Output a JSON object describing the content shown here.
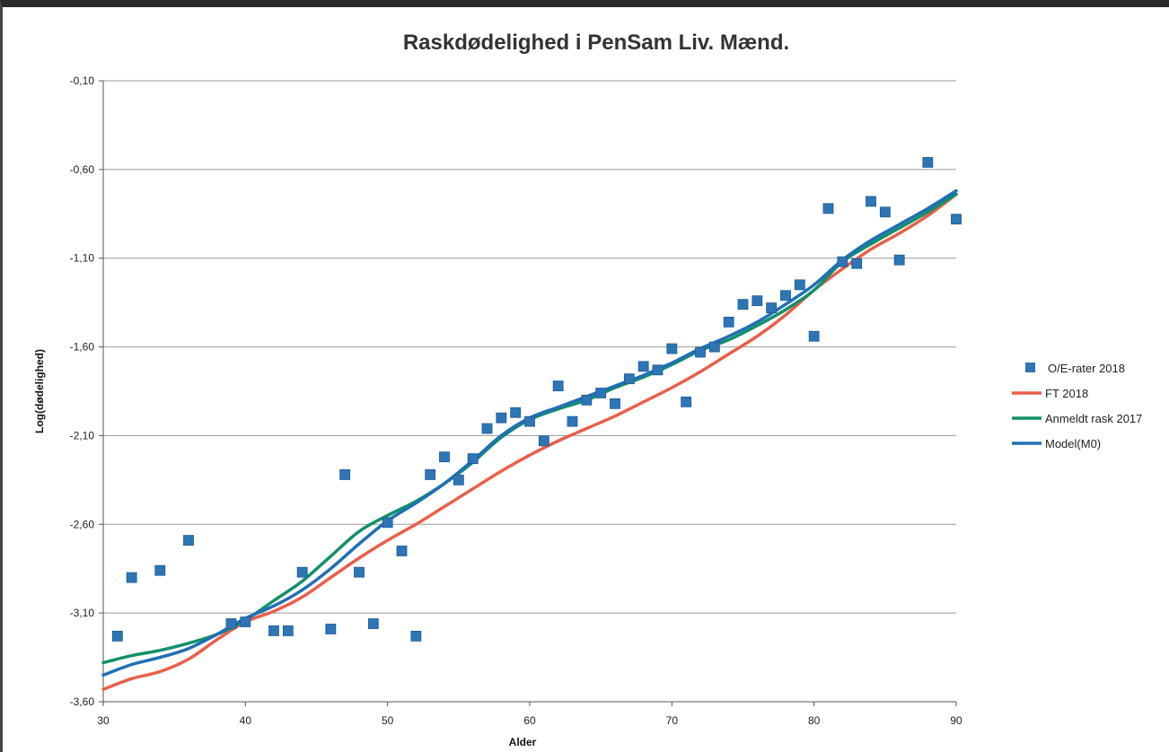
{
  "chart_data": {
    "type": "scatter",
    "title": "Raskdødelighed i PenSam Liv. Mænd.",
    "xlabel": "Alder",
    "ylabel": "Log(dødelighed)",
    "xlim": [
      30,
      90
    ],
    "ylim": [
      -3.6,
      -0.1
    ],
    "xticks": [
      30,
      40,
      50,
      60,
      70,
      80,
      90
    ],
    "xtick_labels": [
      "30",
      "40",
      "50",
      "60",
      "70",
      "80",
      "90"
    ],
    "yticks": [
      -0.1,
      -0.6,
      -1.1,
      -1.6,
      -2.1,
      -2.6,
      -3.1,
      -3.6
    ],
    "ytick_labels": [
      "-0,10",
      "-0,60",
      "-1,10",
      "-1,60",
      "-2,10",
      "-2,60",
      "-3,10",
      "-3,60"
    ],
    "grid": true,
    "legend_position": "right",
    "series": [
      {
        "name": "O/E-rater 2018",
        "kind": "scatter",
        "color": "#2e75b6",
        "points": [
          [
            31,
            -3.23
          ],
          [
            32,
            -2.9
          ],
          [
            34,
            -2.86
          ],
          [
            36,
            -2.69
          ],
          [
            39,
            -3.16
          ],
          [
            40,
            -3.15
          ],
          [
            42,
            -3.2
          ],
          [
            43,
            -3.2
          ],
          [
            44,
            -2.87
          ],
          [
            46,
            -3.19
          ],
          [
            47,
            -2.32
          ],
          [
            48,
            -2.87
          ],
          [
            49,
            -3.16
          ],
          [
            50,
            -2.59
          ],
          [
            51,
            -2.75
          ],
          [
            52,
            -3.23
          ],
          [
            53,
            -2.32
          ],
          [
            54,
            -2.22
          ],
          [
            55,
            -2.35
          ],
          [
            56,
            -2.23
          ],
          [
            57,
            -2.06
          ],
          [
            58,
            -2.0
          ],
          [
            59,
            -1.97
          ],
          [
            60,
            -2.02
          ],
          [
            61,
            -2.13
          ],
          [
            62,
            -1.82
          ],
          [
            63,
            -2.02
          ],
          [
            64,
            -1.9
          ],
          [
            65,
            -1.86
          ],
          [
            66,
            -1.92
          ],
          [
            67,
            -1.78
          ],
          [
            68,
            -1.71
          ],
          [
            69,
            -1.73
          ],
          [
            70,
            -1.61
          ],
          [
            71,
            -1.91
          ],
          [
            72,
            -1.63
          ],
          [
            73,
            -1.6
          ],
          [
            74,
            -1.46
          ],
          [
            75,
            -1.36
          ],
          [
            76,
            -1.34
          ],
          [
            77,
            -1.38
          ],
          [
            78,
            -1.31
          ],
          [
            79,
            -1.25
          ],
          [
            80,
            -1.54
          ],
          [
            81,
            -0.82
          ],
          [
            82,
            -1.12
          ],
          [
            83,
            -1.13
          ],
          [
            84,
            -0.78
          ],
          [
            85,
            -0.84
          ],
          [
            86,
            -1.11
          ],
          [
            88,
            -0.56
          ],
          [
            90,
            -0.88
          ]
        ]
      },
      {
        "name": "FT 2018",
        "kind": "line",
        "color": "#e8604a",
        "points": [
          [
            30,
            -3.53
          ],
          [
            32,
            -3.47
          ],
          [
            34,
            -3.43
          ],
          [
            36,
            -3.36
          ],
          [
            38,
            -3.25
          ],
          [
            40,
            -3.15
          ],
          [
            42,
            -3.09
          ],
          [
            44,
            -3.01
          ],
          [
            46,
            -2.9
          ],
          [
            48,
            -2.79
          ],
          [
            50,
            -2.69
          ],
          [
            52,
            -2.6
          ],
          [
            54,
            -2.5
          ],
          [
            56,
            -2.4
          ],
          [
            58,
            -2.3
          ],
          [
            60,
            -2.21
          ],
          [
            62,
            -2.13
          ],
          [
            64,
            -2.06
          ],
          [
            66,
            -1.99
          ],
          [
            68,
            -1.91
          ],
          [
            70,
            -1.83
          ],
          [
            72,
            -1.74
          ],
          [
            74,
            -1.64
          ],
          [
            76,
            -1.54
          ],
          [
            78,
            -1.42
          ],
          [
            80,
            -1.28
          ],
          [
            82,
            -1.16
          ],
          [
            84,
            -1.05
          ],
          [
            86,
            -0.96
          ],
          [
            88,
            -0.86
          ],
          [
            90,
            -0.74
          ]
        ]
      },
      {
        "name": "Anmeldt rask 2017",
        "kind": "line",
        "color": "#12906a",
        "points": [
          [
            30,
            -3.38
          ],
          [
            32,
            -3.34
          ],
          [
            34,
            -3.31
          ],
          [
            36,
            -3.27
          ],
          [
            38,
            -3.22
          ],
          [
            40,
            -3.14
          ],
          [
            42,
            -3.03
          ],
          [
            44,
            -2.92
          ],
          [
            46,
            -2.78
          ],
          [
            48,
            -2.64
          ],
          [
            50,
            -2.55
          ],
          [
            52,
            -2.47
          ],
          [
            54,
            -2.37
          ],
          [
            56,
            -2.25
          ],
          [
            58,
            -2.11
          ],
          [
            60,
            -2.01
          ],
          [
            62,
            -1.95
          ],
          [
            64,
            -1.9
          ],
          [
            66,
            -1.83
          ],
          [
            68,
            -1.77
          ],
          [
            70,
            -1.7
          ],
          [
            72,
            -1.62
          ],
          [
            74,
            -1.56
          ],
          [
            76,
            -1.48
          ],
          [
            78,
            -1.39
          ],
          [
            80,
            -1.28
          ],
          [
            82,
            -1.12
          ],
          [
            84,
            -1.02
          ],
          [
            86,
            -0.93
          ],
          [
            88,
            -0.84
          ],
          [
            90,
            -0.74
          ]
        ]
      },
      {
        "name": "Model(M0)",
        "kind": "line",
        "color": "#1f6fb5",
        "points": [
          [
            30,
            -3.45
          ],
          [
            32,
            -3.39
          ],
          [
            34,
            -3.35
          ],
          [
            36,
            -3.3
          ],
          [
            38,
            -3.22
          ],
          [
            40,
            -3.13
          ],
          [
            42,
            -3.06
          ],
          [
            44,
            -2.97
          ],
          [
            46,
            -2.85
          ],
          [
            48,
            -2.71
          ],
          [
            50,
            -2.58
          ],
          [
            52,
            -2.48
          ],
          [
            54,
            -2.37
          ],
          [
            56,
            -2.24
          ],
          [
            58,
            -2.1
          ],
          [
            60,
            -2.0
          ],
          [
            62,
            -1.94
          ],
          [
            64,
            -1.88
          ],
          [
            66,
            -1.82
          ],
          [
            68,
            -1.76
          ],
          [
            70,
            -1.69
          ],
          [
            72,
            -1.61
          ],
          [
            74,
            -1.54
          ],
          [
            76,
            -1.46
          ],
          [
            78,
            -1.36
          ],
          [
            80,
            -1.25
          ],
          [
            82,
            -1.11
          ],
          [
            84,
            -1.0
          ],
          [
            86,
            -0.91
          ],
          [
            88,
            -0.82
          ],
          [
            90,
            -0.72
          ]
        ]
      }
    ]
  }
}
